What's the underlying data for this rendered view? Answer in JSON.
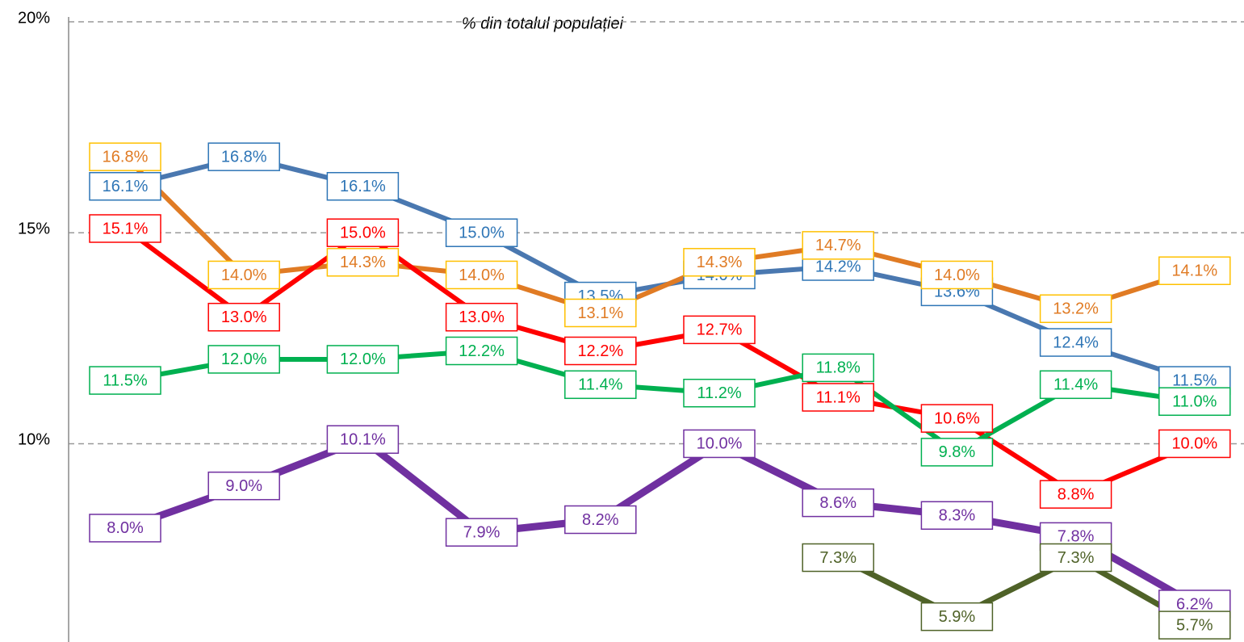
{
  "chart_data": {
    "type": "line",
    "title": "% din totalul populației",
    "categories": [
      null,
      null,
      null,
      null,
      null,
      null,
      null,
      null,
      null,
      null
    ],
    "ylim": [
      5.3,
      20
    ],
    "yticks": [
      {
        "value": 10,
        "label": "10%"
      },
      {
        "value": 15,
        "label": "15%"
      },
      {
        "value": 20,
        "label": "20%"
      }
    ],
    "grid": true,
    "series": [
      {
        "color": "#4a78b0",
        "label_border": "#2e75b6",
        "label_text": "#2e75b6",
        "width": 6,
        "values": [
          16.1,
          16.8,
          16.1,
          15.0,
          13.5,
          14.0,
          14.2,
          13.6,
          12.4,
          11.5
        ],
        "value_labels": [
          "16.1%",
          "16.8%",
          "16.1%",
          "15.0%",
          "13.5%",
          "14.0%",
          "14.2%",
          "13.6%",
          "12.4%",
          "11.5%"
        ]
      },
      {
        "color": "#e07b24",
        "label_border": "#ffc000",
        "label_text": "#e07b24",
        "width": 6,
        "values": [
          16.8,
          14.0,
          14.3,
          14.0,
          13.1,
          14.3,
          14.7,
          14.0,
          13.2,
          14.1
        ],
        "value_labels": [
          "16.8%",
          "14.0%",
          "14.3%",
          "14.0%",
          "13.1%",
          "14.3%",
          "14.7%",
          "14.0%",
          "13.2%",
          "14.1%"
        ]
      },
      {
        "color": "#ff0000",
        "label_border": "#ff0000",
        "label_text": "#ff0000",
        "width": 6,
        "values": [
          15.1,
          13.0,
          15.0,
          13.0,
          12.2,
          12.7,
          11.1,
          10.6,
          8.8,
          10.0
        ],
        "value_labels": [
          "15.1%",
          "13.0%",
          "15.0%",
          "13.0%",
          "12.2%",
          "12.7%",
          "11.1%",
          "10.6%",
          "8.8%",
          "10.0%"
        ]
      },
      {
        "color": "#00b050",
        "label_border": "#00b050",
        "label_text": "#00b050",
        "width": 6,
        "values": [
          11.5,
          12.0,
          12.0,
          12.2,
          11.4,
          11.2,
          11.8,
          9.8,
          11.4,
          11.0
        ],
        "value_labels": [
          "11.5%",
          "12.0%",
          "12.0%",
          "12.2%",
          "11.4%",
          "11.2%",
          "11.8%",
          "9.8%",
          "11.4%",
          "11.0%"
        ]
      },
      {
        "color": "#7030a0",
        "label_border": "#7030a0",
        "label_text": "#7030a0",
        "width": 9,
        "values": [
          8.0,
          9.0,
          10.1,
          7.9,
          8.2,
          10.0,
          8.6,
          8.3,
          7.8,
          6.2
        ],
        "value_labels": [
          "8.0%",
          "9.0%",
          "10.1%",
          "7.9%",
          "8.2%",
          "10.0%",
          "8.6%",
          "8.3%",
          "7.8%",
          "6.2%"
        ]
      },
      {
        "color": "#4f6228",
        "label_border": "#4f6228",
        "label_text": "#4f6228",
        "width": 7,
        "values": [
          null,
          null,
          null,
          null,
          null,
          null,
          7.3,
          5.9,
          7.3,
          5.7
        ],
        "value_labels": [
          null,
          null,
          null,
          null,
          null,
          null,
          "7.3%",
          "5.9%",
          "7.3%",
          "5.7%"
        ]
      }
    ]
  }
}
